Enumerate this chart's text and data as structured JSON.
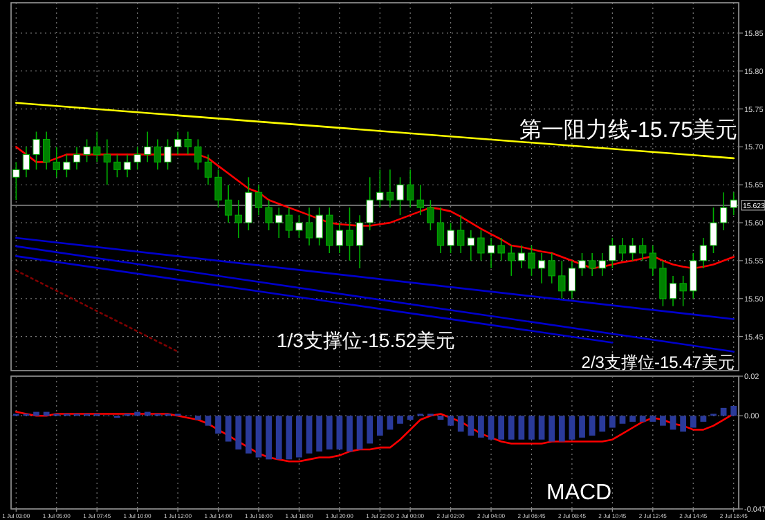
{
  "chart_data": [
    {
      "type": "candlestick",
      "categories": [
        "1 Jul 03:00",
        null,
        null,
        null,
        "1 Jul 05:00",
        null,
        null,
        null,
        "1 Jul 07:45",
        null,
        null,
        null,
        "1 Jul 10:00",
        null,
        null,
        null,
        "1 Jul 12:00",
        null,
        null,
        null,
        "1 Jul 14:00",
        null,
        null,
        null,
        "1 Jul 16:00",
        null,
        null,
        null,
        "1 Jul 18:00",
        null,
        null,
        null,
        "1 Jul 20:00",
        null,
        null,
        null,
        "1 Jul 22:00",
        null,
        null,
        "2 Jul 00:00",
        null,
        null,
        null,
        "2 Jul 02:00",
        null,
        null,
        null,
        "2 Jul 04:00",
        null,
        null,
        null,
        "2 Jul 06:45",
        null,
        null,
        null,
        "2 Jul 08:45",
        null,
        null,
        null,
        "2 Jul 10:45",
        null,
        null,
        null,
        "2 Jul 12:45",
        null,
        null,
        null,
        "2 Jul 14:45",
        null,
        null,
        null,
        "2 Jul 16:45"
      ],
      "ohlc": [
        [
          15.66,
          15.68,
          15.63,
          15.67
        ],
        [
          15.67,
          15.7,
          15.66,
          15.69
        ],
        [
          15.69,
          15.72,
          15.67,
          15.71
        ],
        [
          15.71,
          15.72,
          15.67,
          15.68
        ],
        [
          15.68,
          15.7,
          15.66,
          15.67
        ],
        [
          15.67,
          15.69,
          15.66,
          15.68
        ],
        [
          15.68,
          15.7,
          15.67,
          15.69
        ],
        [
          15.69,
          15.71,
          15.68,
          15.7
        ],
        [
          15.7,
          15.72,
          15.68,
          15.69
        ],
        [
          15.69,
          15.71,
          15.65,
          15.68
        ],
        [
          15.68,
          15.69,
          15.66,
          15.67
        ],
        [
          15.67,
          15.69,
          15.66,
          15.68
        ],
        [
          15.68,
          15.7,
          15.67,
          15.69
        ],
        [
          15.69,
          15.72,
          15.68,
          15.7
        ],
        [
          15.7,
          15.71,
          15.67,
          15.68
        ],
        [
          15.68,
          15.71,
          15.67,
          15.7
        ],
        [
          15.7,
          15.72,
          15.69,
          15.71
        ],
        [
          15.71,
          15.72,
          15.69,
          15.7
        ],
        [
          15.7,
          15.71,
          15.67,
          15.68
        ],
        [
          15.68,
          15.69,
          15.65,
          15.66
        ],
        [
          15.66,
          15.67,
          15.62,
          15.63
        ],
        [
          15.63,
          15.65,
          15.6,
          15.61
        ],
        [
          15.61,
          15.63,
          15.58,
          15.6
        ],
        [
          15.6,
          15.66,
          15.59,
          15.64
        ],
        [
          15.64,
          15.65,
          15.61,
          15.62
        ],
        [
          15.62,
          15.63,
          15.59,
          15.6
        ],
        [
          15.6,
          15.62,
          15.58,
          15.61
        ],
        [
          15.61,
          15.62,
          15.58,
          15.59
        ],
        [
          15.59,
          15.61,
          15.58,
          15.6
        ],
        [
          15.6,
          15.62,
          15.57,
          15.58
        ],
        [
          15.58,
          15.62,
          15.57,
          15.61
        ],
        [
          15.61,
          15.62,
          15.56,
          15.57
        ],
        [
          15.57,
          15.6,
          15.56,
          15.59
        ],
        [
          15.59,
          15.62,
          15.55,
          15.57
        ],
        [
          15.57,
          15.61,
          15.54,
          15.6
        ],
        [
          15.6,
          15.66,
          15.59,
          15.63
        ],
        [
          15.63,
          15.67,
          15.62,
          15.64
        ],
        [
          15.64,
          15.67,
          15.62,
          15.63
        ],
        [
          15.63,
          15.66,
          15.61,
          15.65
        ],
        [
          15.65,
          15.67,
          15.62,
          15.63
        ],
        [
          15.63,
          15.65,
          15.61,
          15.62
        ],
        [
          15.62,
          15.63,
          15.59,
          15.6
        ],
        [
          15.6,
          15.62,
          15.56,
          15.57
        ],
        [
          15.57,
          15.6,
          15.56,
          15.59
        ],
        [
          15.59,
          15.61,
          15.56,
          15.57
        ],
        [
          15.57,
          15.59,
          15.55,
          15.58
        ],
        [
          15.58,
          15.59,
          15.55,
          15.56
        ],
        [
          15.56,
          15.58,
          15.54,
          15.57
        ],
        [
          15.57,
          15.58,
          15.55,
          15.56
        ],
        [
          15.56,
          15.57,
          15.53,
          15.55
        ],
        [
          15.55,
          15.57,
          15.54,
          15.56
        ],
        [
          15.56,
          15.57,
          15.53,
          15.54
        ],
        [
          15.54,
          15.56,
          15.52,
          15.55
        ],
        [
          15.55,
          15.56,
          15.52,
          15.53
        ],
        [
          15.53,
          15.55,
          15.5,
          15.51
        ],
        [
          15.51,
          15.55,
          15.5,
          15.54
        ],
        [
          15.54,
          15.56,
          15.53,
          15.55
        ],
        [
          15.55,
          15.56,
          15.53,
          15.54
        ],
        [
          15.54,
          15.56,
          15.53,
          15.55
        ],
        [
          15.55,
          15.58,
          15.54,
          15.57
        ],
        [
          15.57,
          15.58,
          15.55,
          15.56
        ],
        [
          15.56,
          15.58,
          15.55,
          15.57
        ],
        [
          15.57,
          15.58,
          15.55,
          15.56
        ],
        [
          15.56,
          15.57,
          15.53,
          15.54
        ],
        [
          15.54,
          15.55,
          15.49,
          15.5
        ],
        [
          15.5,
          15.53,
          15.49,
          15.52
        ],
        [
          15.52,
          15.53,
          15.49,
          15.51
        ],
        [
          15.51,
          15.56,
          15.5,
          15.55
        ],
        [
          15.55,
          15.58,
          15.54,
          15.57
        ],
        [
          15.57,
          15.62,
          15.56,
          15.6
        ],
        [
          15.6,
          15.64,
          15.59,
          15.62
        ],
        [
          15.62,
          15.64,
          15.61,
          15.63
        ]
      ],
      "colors": [
        "#ffffff",
        "#ffffff",
        "#ffffff",
        "#008000",
        "#008000",
        "#ffffff",
        "#ffffff",
        "#ffffff",
        "#008000",
        "#008000",
        "#008000",
        "#ffffff",
        "#ffffff",
        "#ffffff",
        "#008000",
        "#ffffff",
        "#ffffff",
        "#008000",
        "#008000",
        "#008000",
        "#008000",
        "#008000",
        "#008000",
        "#ffffff",
        "#008000",
        "#008000",
        "#ffffff",
        "#008000",
        "#ffffff",
        "#008000",
        "#ffffff",
        "#008000",
        "#ffffff",
        "#008000",
        "#ffffff",
        "#ffffff",
        "#ffffff",
        "#008000",
        "#ffffff",
        "#008000",
        "#008000",
        "#008000",
        "#008000",
        "#ffffff",
        "#008000",
        "#ffffff",
        "#008000",
        "#ffffff",
        "#008000",
        "#008000",
        "#ffffff",
        "#008000",
        "#ffffff",
        "#008000",
        "#008000",
        "#ffffff",
        "#ffffff",
        "#008000",
        "#ffffff",
        "#ffffff",
        "#008000",
        "#ffffff",
        "#008000",
        "#008000",
        "#008000",
        "#ffffff",
        "#008000",
        "#ffffff",
        "#ffffff",
        "#ffffff",
        "#ffffff",
        "#ffffff"
      ],
      "series": [
        {
          "type": "line",
          "color": "#ff0000",
          "values": [
            15.7,
            15.69,
            15.68,
            15.68,
            15.685,
            15.69,
            15.69,
            15.69,
            15.69,
            15.69,
            15.69,
            15.69,
            15.69,
            15.69,
            15.69,
            15.69,
            15.69,
            15.69,
            15.69,
            15.685,
            15.675,
            15.665,
            15.655,
            15.645,
            15.64,
            15.63,
            15.625,
            15.62,
            15.615,
            15.61,
            15.605,
            15.6,
            15.598,
            15.597,
            15.596,
            15.596,
            15.598,
            15.6,
            15.605,
            15.61,
            15.615,
            15.62,
            15.618,
            15.615,
            15.608,
            15.6,
            15.592,
            15.585,
            15.578,
            15.57,
            15.568,
            15.565,
            15.562,
            15.56,
            15.555,
            15.55,
            15.545,
            15.54,
            15.542,
            15.545,
            15.548,
            15.55,
            15.553,
            15.556,
            15.55,
            15.545,
            15.542,
            15.54,
            15.542,
            15.545,
            15.55,
            15.555
          ]
        },
        {
          "type": "line",
          "color": "#ffff00",
          "x": [
            "1 Jul 03:00",
            "2 Jul 16:45"
          ],
          "values": [
            15.758,
            15.685
          ]
        },
        {
          "type": "line",
          "color": "#0000cc",
          "x": [
            "1 Jul 03:00",
            "2 Jul 16:45"
          ],
          "values": [
            15.58,
            15.473
          ]
        },
        {
          "type": "line",
          "color": "#0000cc",
          "x": [
            "1 Jul 03:00",
            "2 Jul 16:45"
          ],
          "values": [
            15.569,
            15.43
          ]
        },
        {
          "type": "line",
          "color": "#0000cc",
          "x": [
            "1 Jul 03:00",
            "2 Jul 10:45"
          ],
          "values": [
            15.556,
            15.442
          ]
        },
        {
          "type": "line",
          "color": "#800000",
          "line_style": "dotted",
          "x": [
            "1 Jul 03:00",
            "1 Jul 12:00"
          ],
          "values": [
            15.537,
            15.43
          ]
        }
      ],
      "ylim": [
        15.405,
        15.89
      ],
      "yticks": [
        {
          "value": 15.45,
          "label": "15.45"
        },
        {
          "value": 15.5,
          "label": "15.50"
        },
        {
          "value": 15.55,
          "label": "15.55"
        },
        {
          "value": 15.6,
          "label": "15.60"
        },
        {
          "value": 15.65,
          "label": "15.65"
        },
        {
          "value": 15.7,
          "label": "15.70"
        },
        {
          "value": 15.75,
          "label": "15.75"
        },
        {
          "value": 15.8,
          "label": "15.80"
        },
        {
          "value": 15.85,
          "label": "15.85"
        }
      ],
      "ref_lines": [
        {
          "axis": "y",
          "value": 15.623,
          "label": "15.623",
          "color": "#808080"
        }
      ],
      "grid": true,
      "tick_labels": "y",
      "annotations": [
        "第一阻力线-15.75美元",
        "1/3支撑位-15.52美元",
        "2/3支撑位-15.47美元"
      ]
    },
    {
      "type": "bar",
      "categories": [
        "1 Jul 03:00",
        null,
        null,
        null,
        "1 Jul 05:00",
        null,
        null,
        null,
        "1 Jul 07:45",
        null,
        null,
        null,
        "1 Jul 10:00",
        null,
        null,
        null,
        "1 Jul 12:00",
        null,
        null,
        null,
        "1 Jul 14:00",
        null,
        null,
        null,
        "1 Jul 16:00",
        null,
        null,
        null,
        "1 Jul 18:00",
        null,
        null,
        null,
        "1 Jul 20:00",
        null,
        null,
        null,
        "1 Jul 22:00",
        null,
        null,
        "2 Jul 00:00",
        null,
        null,
        null,
        "2 Jul 02:00",
        null,
        null,
        null,
        "2 Jul 04:00",
        null,
        null,
        null,
        "2 Jul 06:45",
        null,
        null,
        null,
        "2 Jul 08:45",
        null,
        null,
        null,
        "2 Jul 10:45",
        null,
        null,
        null,
        "2 Jul 12:45",
        null,
        null,
        null,
        "2 Jul 14:45",
        null,
        null,
        null,
        "2 Jul 16:45"
      ],
      "series": [
        {
          "type": "bar",
          "color": "#2a3a9a",
          "values": [
            0.001,
            0.001,
            0.002,
            0.002,
            0.001,
            0.001,
            0.001,
            0.001,
            0.001,
            0,
            -0.001,
            0.001,
            0.002,
            0.002,
            0.001,
            0.001,
            0.001,
            0,
            -0.002,
            -0.005,
            -0.009,
            -0.013,
            -0.017,
            -0.019,
            -0.021,
            -0.022,
            -0.022,
            -0.022,
            -0.021,
            -0.019,
            -0.018,
            -0.017,
            -0.017,
            -0.018,
            -0.017,
            -0.014,
            -0.01,
            -0.007,
            -0.004,
            -0.002,
            0.001,
            0.001,
            -0.002,
            -0.005,
            -0.008,
            -0.01,
            -0.011,
            -0.012,
            -0.012,
            -0.012,
            -0.012,
            -0.012,
            -0.012,
            -0.013,
            -0.013,
            -0.012,
            -0.011,
            -0.01,
            -0.008,
            -0.006,
            -0.004,
            -0.003,
            -0.003,
            -0.003,
            -0.005,
            -0.007,
            -0.008,
            -0.006,
            -0.003,
            0.001,
            0.004,
            0.005
          ]
        },
        {
          "type": "line",
          "color": "#ff0000",
          "values": [
            0.002,
            0.001,
            0,
            0,
            0.001,
            0.001,
            0.001,
            0.001,
            0.001,
            0.001,
            0.001,
            0.001,
            0.001,
            0.001,
            0.001,
            0.001,
            0,
            -0.001,
            -0.002,
            -0.004,
            -0.007,
            -0.01,
            -0.013,
            -0.016,
            -0.019,
            -0.021,
            -0.022,
            -0.023,
            -0.023,
            -0.022,
            -0.021,
            -0.021,
            -0.02,
            -0.018,
            -0.017,
            -0.017,
            -0.016,
            -0.016,
            -0.012,
            -0.007,
            -0.002,
            0,
            0.001,
            -0.001,
            -0.003,
            -0.006,
            -0.009,
            -0.011,
            -0.013,
            -0.014,
            -0.014,
            -0.014,
            -0.014,
            -0.013,
            -0.013,
            -0.013,
            -0.013,
            -0.013,
            -0.013,
            -0.012,
            -0.009,
            -0.006,
            -0.003,
            -0.001,
            -0.002,
            -0.004,
            -0.005,
            -0.007,
            -0.007,
            -0.005,
            -0.002,
            0.001
          ]
        }
      ],
      "ylim": [
        -0.047,
        0.02
      ],
      "yticks": [
        {
          "value": 0.02,
          "label": "0.02"
        },
        {
          "value": 0,
          "label": "0.00"
        },
        {
          "value": -0.047,
          "label": "-0.047"
        }
      ],
      "grid": true,
      "annotations": [
        "MACD"
      ]
    }
  ]
}
